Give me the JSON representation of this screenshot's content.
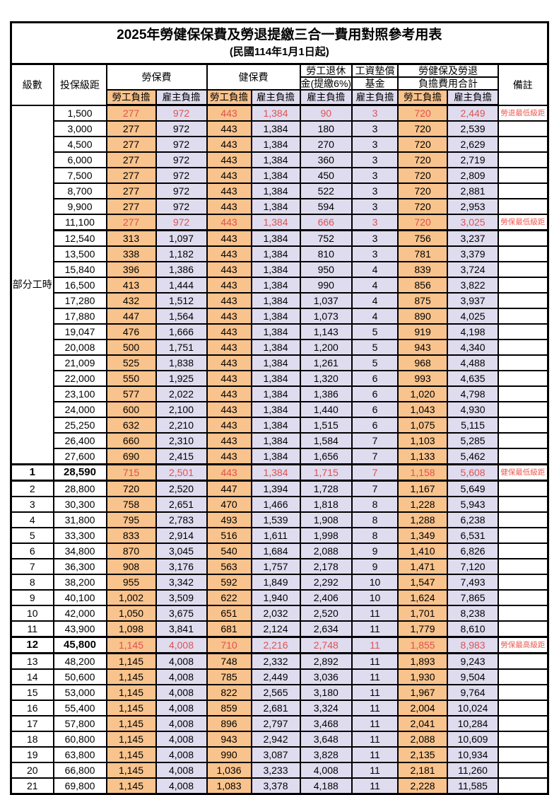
{
  "title": "2025年勞健保保費及勞退提繳三合一費用對照參考用表",
  "subtitle": "(民國114年1月1日起)",
  "colors": {
    "labor_column_bg": "#F8C38D",
    "employer_column_bg": "#DFDCEF",
    "highlight_red": "#DF5252",
    "border": "#000000"
  },
  "header": {
    "level": "級數",
    "salary_bracket": "投保級距",
    "labor_insurance": "勞保費",
    "health_insurance": "健保費",
    "pension_line1": "勞工退休",
    "pension_line2": "金(提繳6%)",
    "wage_fund_line1": "工資墊償",
    "wage_fund_line2": "基金",
    "total_line1": "勞健保及勞退",
    "total_line2": "負擔費用合計",
    "remarks": "備註",
    "labor_burden": "勞工負擔",
    "employer_burden": "雇主負擔"
  },
  "part_time": {
    "label": "部分工時",
    "span": 23
  },
  "rows": [
    {
      "level": "",
      "salary": "1,500",
      "fees": [
        "277",
        "972",
        "443",
        "1,384",
        "90",
        "3",
        "720",
        "2,449"
      ],
      "remark": "勞退最低級距",
      "red": true
    },
    {
      "level": "",
      "salary": "3,000",
      "fees": [
        "277",
        "972",
        "443",
        "1,384",
        "180",
        "3",
        "720",
        "2,539"
      ],
      "remark": ""
    },
    {
      "level": "",
      "salary": "4,500",
      "fees": [
        "277",
        "972",
        "443",
        "1,384",
        "270",
        "3",
        "720",
        "2,629"
      ],
      "remark": ""
    },
    {
      "level": "",
      "salary": "6,000",
      "fees": [
        "277",
        "972",
        "443",
        "1,384",
        "360",
        "3",
        "720",
        "2,719"
      ],
      "remark": ""
    },
    {
      "level": "",
      "salary": "7,500",
      "fees": [
        "277",
        "972",
        "443",
        "1,384",
        "450",
        "3",
        "720",
        "2,809"
      ],
      "remark": ""
    },
    {
      "level": "",
      "salary": "8,700",
      "fees": [
        "277",
        "972",
        "443",
        "1,384",
        "522",
        "3",
        "720",
        "2,881"
      ],
      "remark": ""
    },
    {
      "level": "",
      "salary": "9,900",
      "fees": [
        "277",
        "972",
        "443",
        "1,384",
        "594",
        "3",
        "720",
        "2,953"
      ],
      "remark": ""
    },
    {
      "level": "",
      "salary": "11,100",
      "fees": [
        "277",
        "972",
        "443",
        "1,384",
        "666",
        "3",
        "720",
        "3,025"
      ],
      "remark": "勞保最低級距",
      "red": true
    },
    {
      "level": "",
      "salary": "12,540",
      "fees": [
        "313",
        "1,097",
        "443",
        "1,384",
        "752",
        "3",
        "756",
        "3,237"
      ],
      "remark": "",
      "thick_top": true
    },
    {
      "level": "",
      "salary": "13,500",
      "fees": [
        "338",
        "1,182",
        "443",
        "1,384",
        "810",
        "3",
        "781",
        "3,379"
      ],
      "remark": ""
    },
    {
      "level": "",
      "salary": "15,840",
      "fees": [
        "396",
        "1,386",
        "443",
        "1,384",
        "950",
        "4",
        "839",
        "3,724"
      ],
      "remark": ""
    },
    {
      "level": "",
      "salary": "16,500",
      "fees": [
        "413",
        "1,444",
        "443",
        "1,384",
        "990",
        "4",
        "856",
        "3,822"
      ],
      "remark": ""
    },
    {
      "level": "",
      "salary": "17,280",
      "fees": [
        "432",
        "1,512",
        "443",
        "1,384",
        "1,037",
        "4",
        "875",
        "3,937"
      ],
      "remark": ""
    },
    {
      "level": "",
      "salary": "17,880",
      "fees": [
        "447",
        "1,564",
        "443",
        "1,384",
        "1,073",
        "4",
        "890",
        "4,025"
      ],
      "remark": ""
    },
    {
      "level": "",
      "salary": "19,047",
      "fees": [
        "476",
        "1,666",
        "443",
        "1,384",
        "1,143",
        "5",
        "919",
        "4,198"
      ],
      "remark": ""
    },
    {
      "level": "",
      "salary": "20,008",
      "fees": [
        "500",
        "1,751",
        "443",
        "1,384",
        "1,200",
        "5",
        "943",
        "4,340"
      ],
      "remark": ""
    },
    {
      "level": "",
      "salary": "21,009",
      "fees": [
        "525",
        "1,838",
        "443",
        "1,384",
        "1,261",
        "5",
        "968",
        "4,488"
      ],
      "remark": ""
    },
    {
      "level": "",
      "salary": "22,000",
      "fees": [
        "550",
        "1,925",
        "443",
        "1,384",
        "1,320",
        "6",
        "993",
        "4,635"
      ],
      "remark": ""
    },
    {
      "level": "",
      "salary": "23,100",
      "fees": [
        "577",
        "2,022",
        "443",
        "1,384",
        "1,386",
        "6",
        "1,020",
        "4,798"
      ],
      "remark": ""
    },
    {
      "level": "",
      "salary": "24,000",
      "fees": [
        "600",
        "2,100",
        "443",
        "1,384",
        "1,440",
        "6",
        "1,043",
        "4,930"
      ],
      "remark": ""
    },
    {
      "level": "",
      "salary": "25,250",
      "fees": [
        "632",
        "2,210",
        "443",
        "1,384",
        "1,515",
        "6",
        "1,075",
        "5,115"
      ],
      "remark": ""
    },
    {
      "level": "",
      "salary": "26,400",
      "fees": [
        "660",
        "2,310",
        "443",
        "1,384",
        "1,584",
        "7",
        "1,103",
        "5,285"
      ],
      "remark": ""
    },
    {
      "level": "",
      "salary": "27,600",
      "fees": [
        "690",
        "2,415",
        "443",
        "1,384",
        "1,656",
        "7",
        "1,133",
        "5,462"
      ],
      "remark": ""
    },
    {
      "level": "1",
      "salary": "28,590",
      "fees": [
        "715",
        "2,501",
        "443",
        "1,384",
        "1,715",
        "7",
        "1,158",
        "5,608"
      ],
      "remark": "健保最低級距",
      "red": true,
      "emph": true,
      "thick_top": true
    },
    {
      "level": "2",
      "salary": "28,800",
      "fees": [
        "720",
        "2,520",
        "447",
        "1,394",
        "1,728",
        "7",
        "1,167",
        "5,649"
      ],
      "remark": "",
      "thick_top": true
    },
    {
      "level": "3",
      "salary": "30,300",
      "fees": [
        "758",
        "2,651",
        "470",
        "1,466",
        "1,818",
        "8",
        "1,228",
        "5,943"
      ],
      "remark": ""
    },
    {
      "level": "4",
      "salary": "31,800",
      "fees": [
        "795",
        "2,783",
        "493",
        "1,539",
        "1,908",
        "8",
        "1,288",
        "6,238"
      ],
      "remark": ""
    },
    {
      "level": "5",
      "salary": "33,300",
      "fees": [
        "833",
        "2,914",
        "516",
        "1,611",
        "1,998",
        "8",
        "1,349",
        "6,531"
      ],
      "remark": ""
    },
    {
      "level": "6",
      "salary": "34,800",
      "fees": [
        "870",
        "3,045",
        "540",
        "1,684",
        "2,088",
        "9",
        "1,410",
        "6,826"
      ],
      "remark": ""
    },
    {
      "level": "7",
      "salary": "36,300",
      "fees": [
        "908",
        "3,176",
        "563",
        "1,757",
        "2,178",
        "9",
        "1,471",
        "7,120"
      ],
      "remark": ""
    },
    {
      "level": "8",
      "salary": "38,200",
      "fees": [
        "955",
        "3,342",
        "592",
        "1,849",
        "2,292",
        "10",
        "1,547",
        "7,493"
      ],
      "remark": ""
    },
    {
      "level": "9",
      "salary": "40,100",
      "fees": [
        "1,002",
        "3,509",
        "622",
        "1,940",
        "2,406",
        "10",
        "1,624",
        "7,865"
      ],
      "remark": ""
    },
    {
      "level": "10",
      "salary": "42,000",
      "fees": [
        "1,050",
        "3,675",
        "651",
        "2,032",
        "2,520",
        "11",
        "1,701",
        "8,238"
      ],
      "remark": ""
    },
    {
      "level": "11",
      "salary": "43,900",
      "fees": [
        "1,098",
        "3,841",
        "681",
        "2,124",
        "2,634",
        "11",
        "1,779",
        "8,610"
      ],
      "remark": ""
    },
    {
      "level": "12",
      "salary": "45,800",
      "fees": [
        "1,145",
        "4,008",
        "710",
        "2,216",
        "2,748",
        "11",
        "1,855",
        "8,983"
      ],
      "remark": "勞保最高級距",
      "red": true,
      "emph": true,
      "thick_top": true
    },
    {
      "level": "13",
      "salary": "48,200",
      "fees": [
        "1,145",
        "4,008",
        "748",
        "2,332",
        "2,892",
        "11",
        "1,893",
        "9,243"
      ],
      "remark": "",
      "thick_top": true
    },
    {
      "level": "14",
      "salary": "50,600",
      "fees": [
        "1,145",
        "4,008",
        "785",
        "2,449",
        "3,036",
        "11",
        "1,930",
        "9,504"
      ],
      "remark": ""
    },
    {
      "level": "15",
      "salary": "53,000",
      "fees": [
        "1,145",
        "4,008",
        "822",
        "2,565",
        "3,180",
        "11",
        "1,967",
        "9,764"
      ],
      "remark": ""
    },
    {
      "level": "16",
      "salary": "55,400",
      "fees": [
        "1,145",
        "4,008",
        "859",
        "2,681",
        "3,324",
        "11",
        "2,004",
        "10,024"
      ],
      "remark": ""
    },
    {
      "level": "17",
      "salary": "57,800",
      "fees": [
        "1,145",
        "4,008",
        "896",
        "2,797",
        "3,468",
        "11",
        "2,041",
        "10,284"
      ],
      "remark": ""
    },
    {
      "level": "18",
      "salary": "60,800",
      "fees": [
        "1,145",
        "4,008",
        "943",
        "2,942",
        "3,648",
        "11",
        "2,088",
        "10,609"
      ],
      "remark": ""
    },
    {
      "level": "19",
      "salary": "63,800",
      "fees": [
        "1,145",
        "4,008",
        "990",
        "3,087",
        "3,828",
        "11",
        "2,135",
        "10,934"
      ],
      "remark": ""
    },
    {
      "level": "20",
      "salary": "66,800",
      "fees": [
        "1,145",
        "4,008",
        "1,036",
        "3,233",
        "4,008",
        "11",
        "2,181",
        "11,260"
      ],
      "remark": ""
    },
    {
      "level": "21",
      "salary": "69,800",
      "fees": [
        "1,145",
        "4,008",
        "1,083",
        "3,378",
        "4,188",
        "11",
        "2,228",
        "11,585"
      ],
      "remark": ""
    }
  ]
}
